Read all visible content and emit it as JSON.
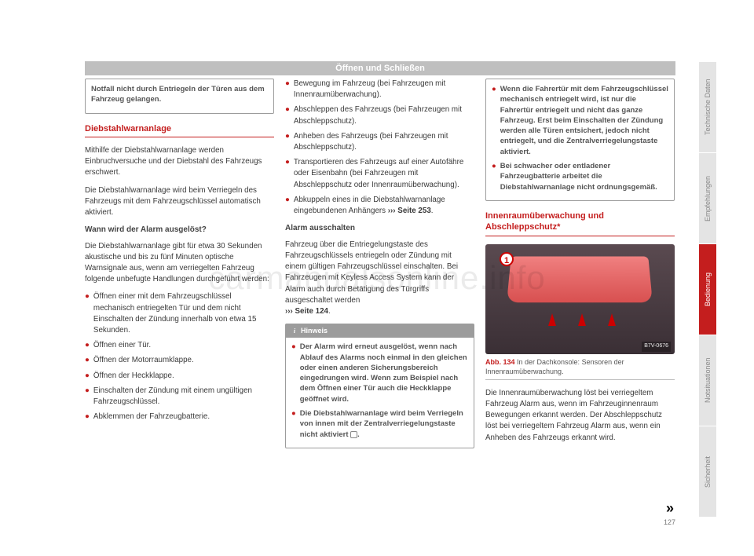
{
  "header": "Öffnen und Schließen",
  "watermark": "carmanualsonline.info",
  "pagenum": "127",
  "tabs": [
    "Technische Daten",
    "Empfehlungen",
    "Bedienung",
    "Notsituationen",
    "Sicherheit"
  ],
  "col1": {
    "topbox": "Notfall nicht durch Entriegeln der Türen aus dem Fahrzeug gelangen.",
    "sect_title": "Diebstahlwarnanlage",
    "p1": "Mithilfe der Diebstahlwarnanlage werden Einbruchversuche und der Diebstahl des Fahrzeugs erschwert.",
    "p2": "Die Diebstahlwarnanlage wird beim Verriegeln des Fahrzeugs mit dem Fahrzeugschlüssel automatisch aktiviert.",
    "sub1": "Wann wird der Alarm ausgelöst?",
    "p3": "Die Diebstahlwarnanlage gibt für etwa 30 Sekunden akustische und bis zu fünf Minuten optische Warnsignale aus, wenn am verriegelten Fahrzeug folgende unbefugte Handlungen durchgeführt werden:",
    "b1": "Öffnen einer mit dem Fahrzeugschlüssel mechanisch entriegelten Tür und dem nicht Einschalten der Zündung innerhalb von etwa 15 Sekunden.",
    "b2": "Öffnen einer Tür.",
    "b3": "Öffnen der Motorraumklappe.",
    "b4": "Öffnen der Heckklappe.",
    "b5": "Einschalten der Zündung mit einem ungültigen Fahrzeugschlüssel.",
    "b6": "Abklemmen der Fahrzeugbatterie."
  },
  "col2": {
    "b1": "Bewegung im Fahrzeug (bei Fahrzeugen mit Innenraumüberwachung).",
    "b2": "Abschleppen des Fahrzeugs (bei Fahrzeugen mit Abschleppschutz).",
    "b3": "Anheben des Fahrzeugs (bei Fahrzeugen mit Abschleppschutz).",
    "b4": "Transportieren des Fahrzeugs auf einer Autofähre oder Eisenbahn (bei Fahrzeugen mit Abschleppschutz oder Innenraumüberwachung).",
    "b5a": "Abkuppeln eines in die Diebstahlwarnanlage eingebundenen Anhängers ",
    "b5ref": "››› Seite 253",
    "b5b": ".",
    "sub1": "Alarm ausschalten",
    "p1a": "Fahrzeug über die Entriegelungstaste des Fahrzeugschlüssels entriegeln oder Zündung mit einem gültigen Fahrzeugschlüssel einschalten. Bei Fahrzeugen mit Keyless Access System kann der Alarm auch durch Betätigung des Türgriffs ausgeschaltet werden ",
    "p1ref": "››› Seite 124",
    "p1b": ".",
    "hint_title": "Hinweis",
    "hint1": "Der Alarm wird erneut ausgelöst, wenn nach Ablauf des Alarms noch einmal in den gleichen oder einen anderen Sicherungsbereich eingedrungen wird. Wenn zum Beispiel nach dem Öffnen einer Tür auch die Heckklappe geöffnet wird.",
    "hint2a": "Die Diebstahlwarnanlage wird beim Verriegeln von innen mit der Zentralverriegelungstaste nicht aktiviert ",
    "hint2b": "."
  },
  "col3": {
    "box1": "Wenn die Fahrertür mit dem Fahrzeugschlüssel mechanisch entriegelt wird, ist nur die Fahrertür entriegelt und nicht das ganze Fahrzeug. Erst beim Einschalten der Zündung werden alle Türen entsichert, jedoch nicht entriegelt, und die Zentralverriegelungstaste aktiviert.",
    "box2": "Bei schwacher oder entladener Fahrzeugbatterie arbeitet die Diebstahlwarnanlage nicht ordnungsgemäß.",
    "sect_title": "Innenraumüberwachung und Abschleppschutz*",
    "fig_num": "1",
    "fig_tag": "B7V-0676",
    "fig_label": "Abb. 134",
    "fig_caption": "  In der Dachkonsole: Sensoren der Innenraumüberwachung.",
    "p1": "Die Innenraumüberwachung löst bei verriegeltem Fahrzeug Alarm aus, wenn im Fahrzeuginnenraum Bewegungen erkannt werden. Der Abschleppschutz löst bei verriegeltem Fahrzeug Alarm aus, wenn ein Anheben des Fahrzeugs erkannt wird."
  }
}
